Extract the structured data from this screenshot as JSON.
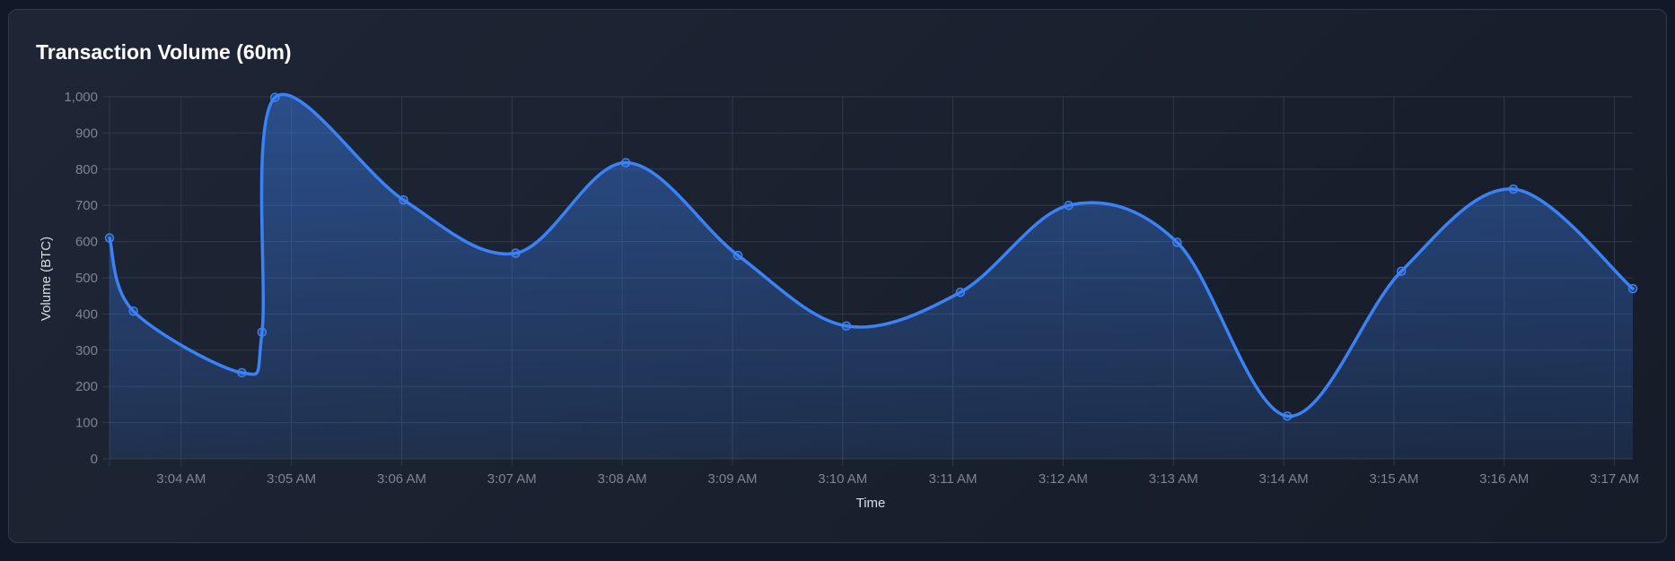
{
  "card": {
    "title": "Transaction Volume (60m)"
  },
  "colors": {
    "background": "#111827",
    "card": "#1b2230",
    "line": "#3b82f6",
    "grid": "#2f3a4b"
  },
  "chart_data": {
    "type": "area",
    "title": "Transaction Volume (60m)",
    "xlabel": "Time",
    "ylabel": "Volume (BTC)",
    "ylim": [
      0,
      1000
    ],
    "y_ticks": [
      0,
      100,
      200,
      300,
      400,
      500,
      600,
      700,
      800,
      900,
      1000
    ],
    "y_tick_labels": [
      "0",
      "100",
      "200",
      "300",
      "400",
      "500",
      "600",
      "700",
      "800",
      "900",
      "1,000"
    ],
    "x_time_range": [
      "3:03:21",
      "3:17:10"
    ],
    "x_ticks": [
      "3:04",
      "3:05",
      "3:06",
      "3:07",
      "3:08",
      "3:09",
      "3:10",
      "3:11",
      "3:12",
      "3:13",
      "3:14",
      "3:15",
      "3:16",
      "3:17"
    ],
    "x_tick_labels": [
      "3:04 AM",
      "3:05 AM",
      "3:06 AM",
      "3:07 AM",
      "3:08 AM",
      "3:09 AM",
      "3:10 AM",
      "3:11 AM",
      "3:12 AM",
      "3:13 AM",
      "3:14 AM",
      "3:15 AM",
      "3:16 AM",
      "3:17 AM"
    ],
    "grid": true,
    "legend": "none",
    "fill": true,
    "smooth": true,
    "series": [
      {
        "x": [
          "3:03:21",
          "3:03:34",
          "3:04:33",
          "3:04:44",
          "3:04:51",
          "3:06:01",
          "3:07:02",
          "3:08:02",
          "3:09:03",
          "3:10:02",
          "3:11:04",
          "3:12:03",
          "3:13:02",
          "3:14:02",
          "3:15:04",
          "3:16:05",
          "3:17:10"
        ],
        "values": [
          610,
          408,
          238,
          350,
          998,
          715,
          568,
          818,
          562,
          367,
          460,
          700,
          598,
          118,
          518,
          745,
          470
        ]
      }
    ]
  }
}
